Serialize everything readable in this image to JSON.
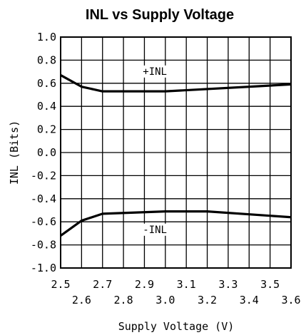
{
  "chart_data": {
    "type": "line",
    "title": "INL vs Supply Voltage",
    "xlabel": "Supply Voltage (V)",
    "ylabel": "INL (Bits)",
    "xlim": [
      2.5,
      3.6
    ],
    "ylim": [
      -1.0,
      1.0
    ],
    "grid": true,
    "x_ticks": [
      "2.5",
      "2.6",
      "2.7",
      "2.8",
      "2.9",
      "3.0",
      "3.1",
      "3.2",
      "3.3",
      "3.4",
      "3.5",
      "3.6"
    ],
    "y_ticks": [
      "1.0",
      "0.8",
      "0.6",
      "0.4",
      "0.2",
      "0.0",
      "-0.2",
      "-0.4",
      "-0.6",
      "-0.8",
      "-1.0"
    ],
    "series": [
      {
        "name": "+INL",
        "x": [
          2.5,
          2.6,
          2.7,
          3.0,
          3.6
        ],
        "y": [
          0.67,
          0.57,
          0.53,
          0.53,
          0.59
        ]
      },
      {
        "name": "-INL",
        "x": [
          2.5,
          2.6,
          2.7,
          3.0,
          3.2,
          3.6
        ],
        "y": [
          -0.72,
          -0.59,
          -0.53,
          -0.51,
          -0.51,
          -0.56
        ]
      }
    ],
    "annotations": [
      {
        "text": "+INL",
        "x": 2.95,
        "y": 0.68
      },
      {
        "text": "-INL",
        "x": 2.95,
        "y": -0.69
      }
    ]
  }
}
